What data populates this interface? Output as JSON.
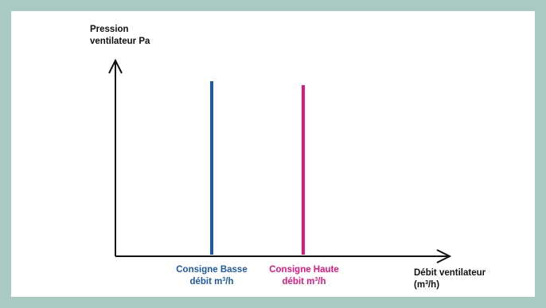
{
  "colors": {
    "background": "#a9c9c3",
    "panel": "#ffffff",
    "axis": "#111111",
    "low_setpoint": "#1f5aa6",
    "high_setpoint": "#e6157f"
  },
  "y_axis": {
    "line1": "Pression",
    "line2": "ventilateur Pa"
  },
  "x_axis": {
    "line1": "Débit ventilateur",
    "line2_prefix": "(m",
    "line2_sup": "3",
    "line2_suffix": "/h)"
  },
  "setpoints": {
    "low": {
      "line1": "Consigne Basse",
      "line2_prefix": "débit m",
      "line2_sup": "3",
      "line2_suffix": "/h"
    },
    "high": {
      "line1": "Consigne Haute",
      "line2_prefix": "débit m",
      "line2_sup": "3",
      "line2_suffix": "/h"
    }
  }
}
